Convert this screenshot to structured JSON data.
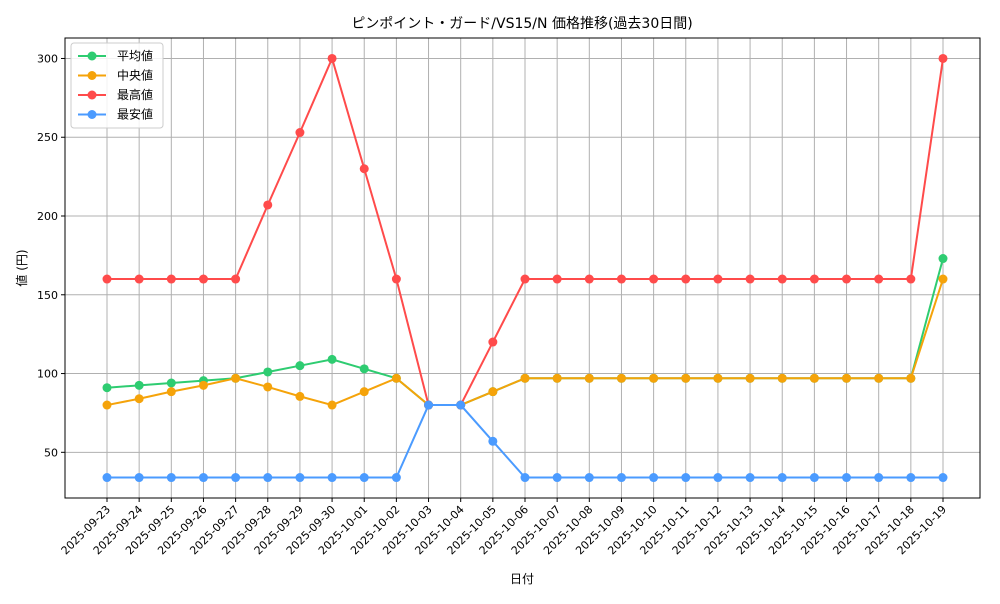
{
  "chart_data": {
    "type": "line",
    "title": "ピンポイント・ガード/VS15/N 価格推移(過去30日間)",
    "xlabel": "日付",
    "ylabel": "値 (円)",
    "ylim": [
      21,
      313
    ],
    "yticks": [
      50,
      100,
      150,
      200,
      250,
      300
    ],
    "grid": true,
    "legend_position": "top-left",
    "categories": [
      "2025-09-23",
      "2025-09-24",
      "2025-09-25",
      "2025-09-26",
      "2025-09-27",
      "2025-09-28",
      "2025-09-29",
      "2025-09-30",
      "2025-10-01",
      "2025-10-02",
      "2025-10-03",
      "2025-10-04",
      "2025-10-05",
      "2025-10-06",
      "2025-10-07",
      "2025-10-08",
      "2025-10-09",
      "2025-10-10",
      "2025-10-11",
      "2025-10-12",
      "2025-10-13",
      "2025-10-14",
      "2025-10-15",
      "2025-10-16",
      "2025-10-17",
      "2025-10-18",
      "2025-10-19"
    ],
    "series": [
      {
        "name": "平均値",
        "color": "#2ecc71",
        "values": [
          91,
          92.5,
          94,
          95.5,
          97,
          101,
          105,
          109,
          103,
          97,
          80,
          80,
          88.5,
          97,
          97,
          97,
          97,
          97,
          97,
          97,
          97,
          97,
          97,
          97,
          97,
          97,
          173
        ]
      },
      {
        "name": "中央値",
        "color": "#f5a30a",
        "values": [
          80,
          84,
          88.5,
          92.5,
          97,
          91.5,
          85.5,
          80,
          88.5,
          97,
          80,
          80,
          88.5,
          97,
          97,
          97,
          97,
          97,
          97,
          97,
          97,
          97,
          97,
          97,
          97,
          97,
          160
        ]
      },
      {
        "name": "最高値",
        "color": "#ff4b4b",
        "values": [
          160,
          160,
          160,
          160,
          160,
          207,
          253,
          300,
          230,
          160,
          80,
          80,
          120,
          160,
          160,
          160,
          160,
          160,
          160,
          160,
          160,
          160,
          160,
          160,
          160,
          160,
          300
        ]
      },
      {
        "name": "最安値",
        "color": "#4b9bff",
        "values": [
          34,
          34,
          34,
          34,
          34,
          34,
          34,
          34,
          34,
          34,
          80,
          80,
          57,
          34,
          34,
          34,
          34,
          34,
          34,
          34,
          34,
          34,
          34,
          34,
          34,
          34,
          34
        ]
      }
    ]
  }
}
